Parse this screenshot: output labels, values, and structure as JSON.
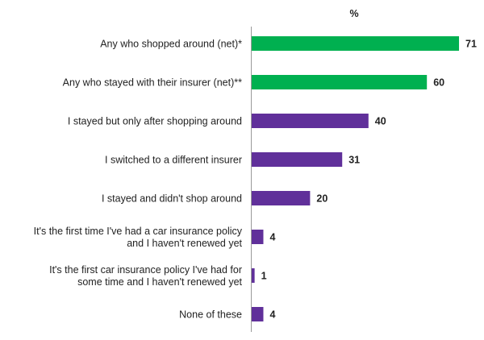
{
  "chart_data": {
    "type": "bar",
    "orientation": "horizontal",
    "unit": "%",
    "categories": [
      "Any who shopped around (net)*",
      "Any who stayed with their insurer (net)**",
      "I stayed but only after shopping around",
      "I switched to a different insurer",
      "I stayed and didn't shop around",
      "It's the first time I've had a car insurance policy and I haven't renewed yet",
      "It's the first car insurance policy I've had for some time and I haven't renewed yet",
      "None of these"
    ],
    "category_lines": [
      [
        "Any who shopped around (net)*"
      ],
      [
        "Any who stayed with their insurer (net)**"
      ],
      [
        "I stayed but only after shopping around"
      ],
      [
        "I switched to a different insurer"
      ],
      [
        "I stayed and didn't shop around"
      ],
      [
        "It's the first time I've had a car insurance policy",
        "and I haven't renewed yet"
      ],
      [
        "It's the first car insurance policy I've had for",
        "some time and I haven't renewed yet"
      ],
      [
        "None of these"
      ]
    ],
    "values": [
      71,
      60,
      40,
      31,
      20,
      4,
      1,
      4
    ],
    "bar_colors": [
      "#00b050",
      "#00b050",
      "#60309a",
      "#60309a",
      "#60309a",
      "#60309a",
      "#60309a",
      "#60309a"
    ],
    "xlim": [
      0,
      80
    ],
    "grid": false,
    "legend": "none"
  }
}
